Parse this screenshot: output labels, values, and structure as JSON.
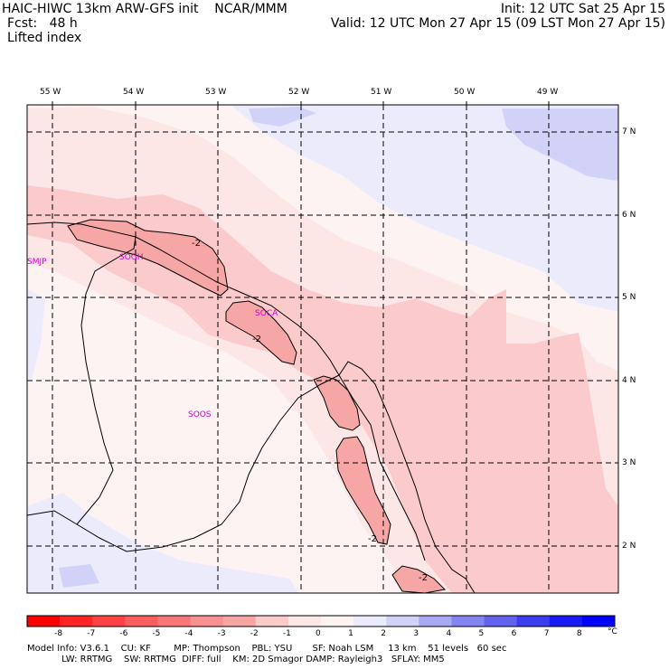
{
  "header": {
    "title_left": "HAIC-HIWC 13km ARW-GFS init    NCAR/MMM",
    "fcst": "Fcst:   48 h",
    "field": "Lifted index",
    "init": "Init: 12 UTC Sat 25 Apr 15",
    "valid": "Valid: 12 UTC Mon 27 Apr 15 (09 LST Mon 27 Apr 15)"
  },
  "map": {
    "lon_labels": [
      "55 W",
      "54 W",
      "53 W",
      "52 W",
      "51 W",
      "50 W",
      "49 W"
    ],
    "lat_labels": [
      "7 N",
      "6 N",
      "5 N",
      "4 N",
      "3 N",
      "2 N"
    ],
    "stations": [
      "SMJP",
      "SOGH",
      "SOCA",
      "SOOS"
    ],
    "contour_labels": [
      "-2",
      "-2",
      "-2",
      "-2"
    ],
    "colors": {
      "li_minus3": "#f7a6a6",
      "li_minus2": "#fbcaca",
      "li_minus1": "#fde6e6",
      "li_zero": "#fdf3f3",
      "li_plus1": "#ebebfb",
      "li_plus2": "#d2d2f8",
      "border": "#000000",
      "station": "#cc00cc"
    }
  },
  "colorbar": {
    "labels": [
      "-8",
      "-7",
      "-6",
      "-5",
      "-4",
      "-3",
      "-2",
      "-1",
      "0",
      "1",
      "2",
      "3",
      "4",
      "5",
      "6",
      "7",
      "8"
    ],
    "unit": "°C",
    "colors": [
      "#ff0000",
      "#ff2525",
      "#fd4343",
      "#fc5e5e",
      "#fa7777",
      "#f89191",
      "#f7a6a6",
      "#fbcaca",
      "#fde6e6",
      "#fdf3f3",
      "#ebebfb",
      "#d2d2f8",
      "#a9a9f3",
      "#8585f1",
      "#6262ee",
      "#3d3df0",
      "#1a1af5",
      "#0000ff"
    ]
  },
  "footer": {
    "line1": "Model Info: V3.6.1    CU: KF        MP: Thompson    PBL: YSU       SF: Noah LSM     13 km    51 levels   60 sec",
    "line2": "            LW: RRTMG    SW: RRTMG  DIFF: full    KM: 2D Smagor DAMP: Rayleigh3   SFLAY: MM5"
  }
}
